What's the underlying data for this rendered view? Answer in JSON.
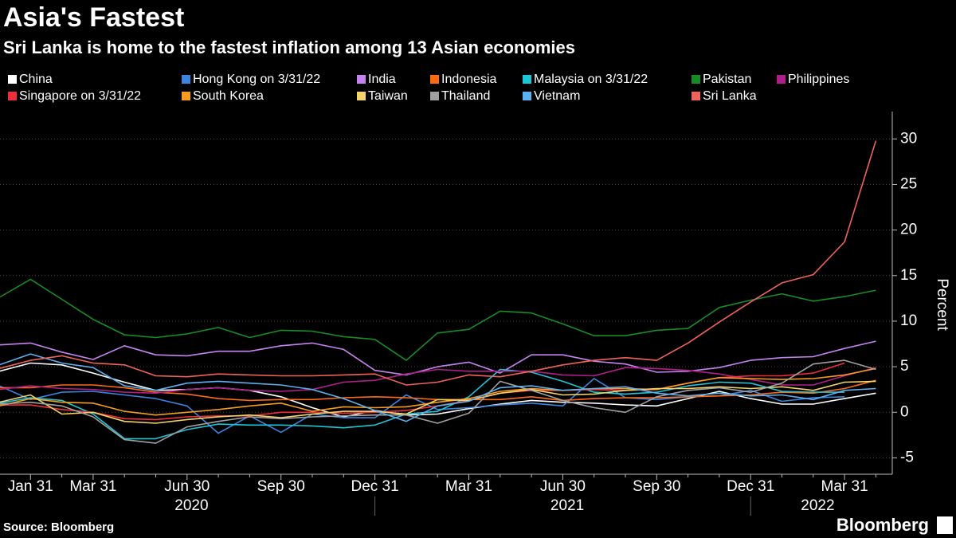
{
  "chart_data": {
    "type": "line",
    "title": "Asia's Fastest",
    "subtitle": "Sri Lanka is home to the fastest inflation among 13 Asian economies",
    "y_axis_label": "Percent",
    "source": "Source: Bloomberg",
    "brand": "Bloomberg",
    "categories": [
      null,
      "Jan 31",
      null,
      "Mar 31",
      null,
      null,
      "Jun 30",
      null,
      null,
      "Sep 30",
      null,
      null,
      "Dec 31",
      null,
      null,
      "Mar 31",
      null,
      null,
      "Jun 30",
      null,
      null,
      "Sep 30",
      null,
      null,
      "Dec 31",
      null,
      null,
      "Mar 31",
      null
    ],
    "years": [
      "2020",
      "2021",
      "2022"
    ],
    "ylim": [
      -6.8,
      33
    ],
    "yticks": [
      -5,
      0,
      5,
      10,
      15,
      20,
      25,
      30
    ],
    "grid": true,
    "series": [
      {
        "name": "China",
        "color": "#ffffff",
        "values": [
          4.5,
          5.4,
          5.2,
          4.3,
          3.3,
          2.4,
          2.5,
          2.7,
          2.4,
          1.7,
          0.5,
          -0.5,
          0.2,
          -0.3,
          -0.2,
          0.4,
          0.9,
          1.3,
          1.1,
          1.0,
          0.8,
          0.7,
          1.5,
          2.3,
          1.5,
          0.9,
          0.9,
          1.5,
          2.1
        ]
      },
      {
        "name": "Hong Kong on 3/31/22",
        "color": "#3a85e0",
        "values": [
          2.9,
          1.4,
          2.2,
          2.3,
          1.9,
          1.5,
          0.7,
          -2.3,
          -0.4,
          -2.2,
          -0.2,
          -0.6,
          -0.6,
          1.9,
          0.3,
          0.5,
          0.8,
          1.0,
          0.7,
          3.7,
          1.6,
          1.4,
          1.7,
          1.8,
          2.4,
          1.2,
          1.6,
          1.7,
          null
        ]
      },
      {
        "name": "India",
        "color": "#c583f0",
        "values": [
          7.4,
          7.6,
          6.6,
          5.8,
          7.3,
          6.3,
          6.2,
          6.7,
          6.7,
          7.3,
          7.6,
          6.9,
          4.6,
          4.1,
          5.0,
          5.5,
          4.3,
          6.3,
          6.3,
          5.6,
          5.3,
          4.4,
          4.5,
          4.9,
          5.7,
          6.0,
          6.1,
          7.0,
          7.8
        ]
      },
      {
        "name": "Indonesia",
        "color": "#ff6a13",
        "values": [
          2.7,
          2.7,
          3.0,
          3.0,
          2.7,
          2.2,
          2.0,
          1.5,
          1.3,
          1.4,
          1.4,
          1.6,
          1.7,
          1.6,
          1.4,
          1.4,
          1.4,
          1.7,
          1.3,
          1.5,
          1.6,
          1.6,
          1.7,
          1.8,
          1.9,
          2.2,
          2.1,
          2.6,
          3.5
        ]
      },
      {
        "name": "Malaysia on 3/31/22",
        "color": "#1ec5d6",
        "values": [
          1.0,
          1.6,
          1.3,
          -0.2,
          -2.9,
          -2.9,
          -1.9,
          -1.3,
          -1.4,
          -1.4,
          -1.5,
          -1.7,
          -1.4,
          -0.2,
          0.1,
          1.7,
          4.7,
          4.4,
          3.4,
          2.2,
          2.0,
          2.2,
          2.9,
          3.3,
          3.2,
          2.3,
          2.2,
          2.2,
          null
        ]
      },
      {
        "name": "Pakistan",
        "color": "#168c26",
        "values": [
          12.6,
          14.6,
          12.4,
          10.2,
          8.5,
          8.2,
          8.6,
          9.3,
          8.2,
          9.0,
          8.9,
          8.3,
          8.0,
          5.7,
          8.7,
          9.1,
          11.1,
          10.9,
          9.7,
          8.4,
          8.4,
          9.0,
          9.2,
          11.5,
          12.3,
          13.0,
          12.2,
          12.7,
          13.4
        ]
      },
      {
        "name": "Philippines",
        "color": "#b01f89",
        "values": [
          2.5,
          2.9,
          2.6,
          2.5,
          2.2,
          2.1,
          2.5,
          2.7,
          2.4,
          2.3,
          2.5,
          3.3,
          3.5,
          4.2,
          4.7,
          4.5,
          4.5,
          4.5,
          4.1,
          4.0,
          4.9,
          4.8,
          4.6,
          4.2,
          3.6,
          3.0,
          3.0,
          4.0,
          4.9
        ]
      },
      {
        "name": "Singapore on 3/31/22",
        "color": "#f02d3b",
        "values": [
          0.8,
          0.8,
          0.3,
          0.0,
          -0.7,
          -0.8,
          -0.5,
          -0.4,
          -0.4,
          0.0,
          0.0,
          -0.1,
          0.0,
          0.2,
          0.7,
          1.3,
          2.1,
          2.4,
          2.4,
          2.5,
          2.4,
          2.5,
          3.2,
          3.8,
          4.0,
          4.0,
          4.3,
          5.4,
          null
        ]
      },
      {
        "name": "South Korea",
        "color": "#f79c1c",
        "values": [
          0.7,
          1.5,
          1.1,
          1.0,
          0.1,
          -0.3,
          0.0,
          0.3,
          0.7,
          1.0,
          0.1,
          0.6,
          0.5,
          0.6,
          1.1,
          1.5,
          2.3,
          2.6,
          2.4,
          2.6,
          2.6,
          2.5,
          3.2,
          3.8,
          3.7,
          3.6,
          3.7,
          4.1,
          4.8
        ]
      },
      {
        "name": "Taiwan",
        "color": "#f5d36b",
        "values": [
          1.1,
          1.9,
          -0.2,
          0.0,
          -1.0,
          -1.2,
          -0.8,
          -0.5,
          -0.3,
          -0.6,
          -0.2,
          0.1,
          0.1,
          -0.2,
          1.4,
          1.3,
          2.1,
          2.5,
          1.9,
          2.0,
          2.4,
          2.6,
          2.6,
          2.8,
          2.6,
          2.8,
          2.4,
          3.3,
          3.4
        ]
      },
      {
        "name": "Thailand",
        "color": "#a0a0a0",
        "values": [
          0.9,
          1.1,
          0.7,
          -0.5,
          -3.0,
          -3.4,
          -1.6,
          -1.0,
          -0.5,
          -0.7,
          -0.5,
          -0.4,
          -0.3,
          -0.3,
          -1.2,
          -0.1,
          3.4,
          2.4,
          1.3,
          0.5,
          0.0,
          1.7,
          2.4,
          2.7,
          2.2,
          3.2,
          5.3,
          5.7,
          4.7
        ]
      },
      {
        "name": "Vietnam",
        "color": "#5ab0f0",
        "values": [
          5.2,
          6.4,
          5.4,
          4.9,
          2.9,
          2.4,
          3.2,
          3.4,
          3.2,
          3.0,
          2.5,
          1.5,
          0.2,
          -1.0,
          0.7,
          1.2,
          2.7,
          2.9,
          2.4,
          2.6,
          2.8,
          2.1,
          1.8,
          2.1,
          1.8,
          1.9,
          1.4,
          2.4,
          2.6
        ]
      },
      {
        "name": "Sri Lanka",
        "color": "#f0625a",
        "values": [
          4.8,
          5.7,
          6.2,
          5.4,
          5.2,
          4.0,
          3.9,
          4.2,
          4.1,
          4.0,
          4.0,
          4.1,
          4.2,
          3.0,
          3.3,
          4.1,
          3.9,
          4.5,
          5.2,
          5.7,
          6.0,
          5.7,
          7.6,
          9.9,
          12.1,
          14.2,
          15.1,
          18.7,
          29.8
        ]
      }
    ]
  }
}
